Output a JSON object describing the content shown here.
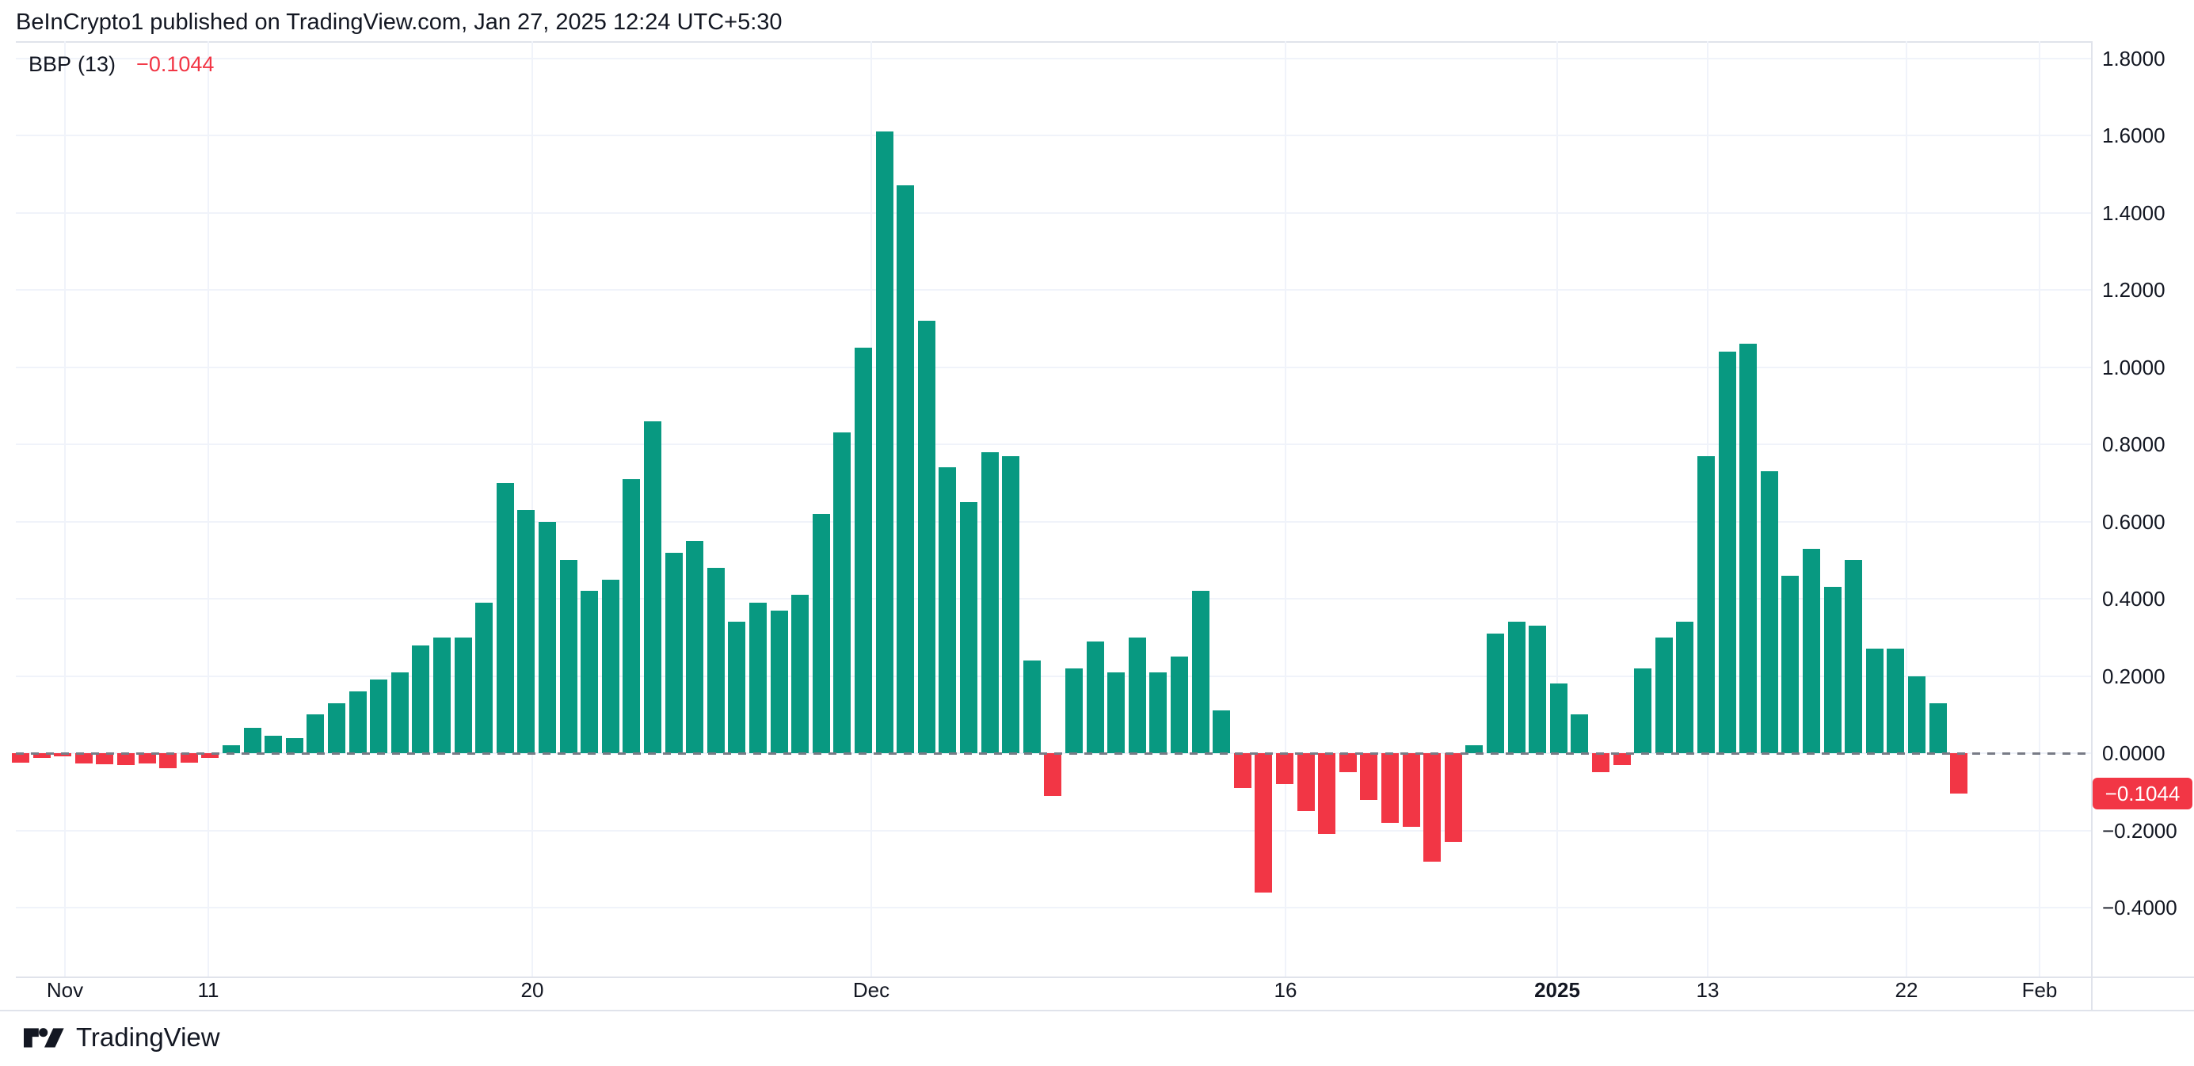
{
  "header": {
    "title": "BeInCrypto1 published on TradingView.com, Jan 27, 2025 12:24 UTC+5:30"
  },
  "legend": {
    "indicator": "BBP",
    "params": "(13)",
    "value": "−0.1044"
  },
  "colors": {
    "up": "#089981",
    "down": "#F23645",
    "text": "#131722",
    "grid": "#F0F3FA",
    "zero_line": "#787B86",
    "border": "#E0E3EB",
    "badge_bg": "#F23645",
    "badge_text": "#FFFFFF",
    "brand": "#131722"
  },
  "y_axis": {
    "ticks": [
      {
        "label": "1.8000",
        "v": 1.8
      },
      {
        "label": "1.6000",
        "v": 1.6
      },
      {
        "label": "1.4000",
        "v": 1.4
      },
      {
        "label": "1.2000",
        "v": 1.2
      },
      {
        "label": "1.0000",
        "v": 1.0
      },
      {
        "label": "0.8000",
        "v": 0.8
      },
      {
        "label": "0.6000",
        "v": 0.6
      },
      {
        "label": "0.4000",
        "v": 0.4
      },
      {
        "label": "0.2000",
        "v": 0.2
      },
      {
        "label": "0.0000",
        "v": 0.0
      },
      {
        "label": "−0.2000",
        "v": -0.2
      },
      {
        "label": "−0.4000",
        "v": -0.4
      }
    ],
    "badge": {
      "text": "−0.1044",
      "value": -0.1044
    }
  },
  "x_axis": {
    "labels": [
      {
        "text": "Nov",
        "x": 82,
        "bold": false
      },
      {
        "text": "11",
        "x": 263,
        "bold": false
      },
      {
        "text": "20",
        "x": 672,
        "bold": false
      },
      {
        "text": "Dec",
        "x": 1100,
        "bold": false
      },
      {
        "text": "16",
        "x": 1623,
        "bold": false
      },
      {
        "text": "2025",
        "x": 1966,
        "bold": true
      },
      {
        "text": "13",
        "x": 2156,
        "bold": false
      },
      {
        "text": "22",
        "x": 2407,
        "bold": false
      },
      {
        "text": "Feb",
        "x": 2575,
        "bold": false
      }
    ]
  },
  "footer": {
    "brand": "TradingView"
  },
  "chart_data": {
    "type": "bar",
    "title": "BBP (13) — Bull Bear Power daily histogram, Nov 2024 – Jan 27 2025",
    "xlabel": "",
    "ylabel": "",
    "ylim": [
      -0.583,
      1.843
    ],
    "grid": true,
    "zero_line": "dashed",
    "legend_position": "top-left",
    "up_color": "#089981",
    "down_color": "#F23645",
    "last_value": -0.1044,
    "values": [
      -0.025,
      -0.012,
      -0.008,
      -0.026,
      -0.028,
      -0.03,
      -0.026,
      -0.038,
      -0.025,
      -0.013,
      0.02,
      0.065,
      0.045,
      0.04,
      0.1,
      0.13,
      0.16,
      0.19,
      0.21,
      0.28,
      0.3,
      0.3,
      0.39,
      0.7,
      0.63,
      0.6,
      0.5,
      0.42,
      0.45,
      0.71,
      0.86,
      0.52,
      0.55,
      0.48,
      0.34,
      0.39,
      0.37,
      0.41,
      0.62,
      0.83,
      1.05,
      1.61,
      1.47,
      1.12,
      0.74,
      0.65,
      0.78,
      0.77,
      0.24,
      -0.11,
      0.22,
      0.29,
      0.21,
      0.3,
      0.21,
      0.25,
      0.42,
      0.11,
      -0.09,
      -0.36,
      -0.08,
      -0.15,
      -0.21,
      -0.05,
      -0.12,
      -0.18,
      -0.19,
      -0.28,
      -0.23,
      0.02,
      0.31,
      0.34,
      0.33,
      0.18,
      0.1,
      -0.05,
      -0.03,
      0.22,
      0.3,
      0.34,
      0.77,
      1.04,
      1.06,
      0.73,
      0.46,
      0.53,
      0.43,
      0.5,
      0.27,
      0.27,
      0.2,
      0.13,
      -0.1044
    ]
  }
}
